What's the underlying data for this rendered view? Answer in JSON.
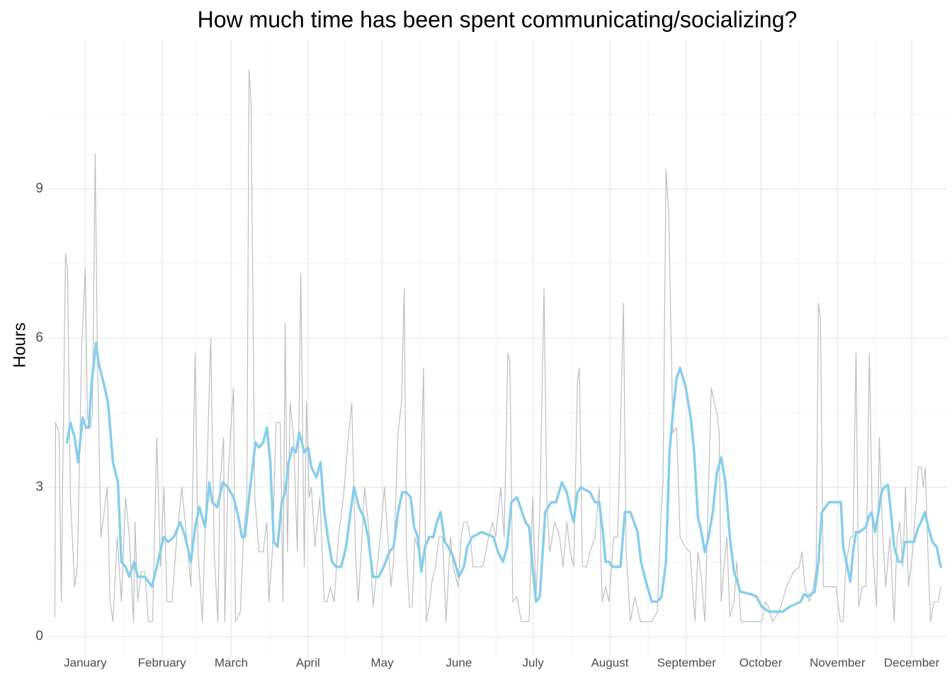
{
  "chart_data": {
    "type": "line",
    "title": "How much time has been spent communicating/socializing?",
    "y_label": "Hours",
    "xlim": [
      -15,
      348
    ],
    "ylim": [
      -0.4,
      12
    ],
    "xticks": [
      {
        "value": 0,
        "label": "January"
      },
      {
        "value": 31,
        "label": "February"
      },
      {
        "value": 59,
        "label": "March"
      },
      {
        "value": 90,
        "label": "April"
      },
      {
        "value": 120,
        "label": "May"
      },
      {
        "value": 151,
        "label": "June"
      },
      {
        "value": 181,
        "label": "July"
      },
      {
        "value": 212,
        "label": "August"
      },
      {
        "value": 243,
        "label": "September"
      },
      {
        "value": 273,
        "label": "October"
      },
      {
        "value": 304,
        "label": "November"
      },
      {
        "value": 334,
        "label": "December"
      }
    ],
    "yticks": [
      0,
      3,
      6,
      9
    ],
    "minor_xticks": [
      15.5,
      45,
      74.5,
      105,
      135.5,
      166,
      196.5,
      227.5,
      258,
      288.5,
      319
    ],
    "minor_yticks": [
      1.5,
      4.5,
      7.5,
      10.5
    ],
    "grid": true,
    "series": [
      {
        "color": "#bebebe",
        "line_width": 1.2,
        "x": [
          -12.3,
          -12,
          -10.6,
          -9.7,
          -9.2,
          -8,
          -7.2,
          -6,
          -4.3,
          -3.2,
          -1.4,
          0,
          0.9,
          2,
          2.9,
          4,
          4.9,
          6.3,
          8.9,
          10,
          11.2,
          12.9,
          14.6,
          16.3,
          17.8,
          19.5,
          20.1,
          21.2,
          22.6,
          24.1,
          25.5,
          27.2,
          28.9,
          30.4,
          31.8,
          33,
          35,
          37,
          39,
          41,
          42.7,
          44.4,
          45.6,
          47.3,
          49,
          50.7,
          52.1,
          53.6,
          54.4,
          55.9,
          56.4,
          57.6,
          58.7,
          59.9,
          60.7,
          62.7,
          63.9,
          65.3,
          66.2,
          67,
          68.5,
          70.2,
          71.9,
          73.4,
          74.2,
          75.6,
          77.1,
          78.8,
          79.9,
          80.8,
          81.7,
          82.8,
          84.2,
          85.7,
          87.1,
          88.5,
          89.4,
          90.5,
          91.4,
          92.8,
          94.8,
          96.6,
          97.7,
          99.1,
          100.6,
          102.3,
          104.3,
          106.3,
          107.7,
          109.2,
          110.3,
          111.5,
          112.9,
          114.9,
          116.3,
          117.8,
          119.2,
          120.9,
          122.3,
          123.5,
          124.6,
          126.4,
          127.8,
          128.9,
          129.8,
          131,
          132.1,
          133.2,
          134.9,
          136.7,
          137.8,
          139,
          140.1,
          141.5,
          143,
          144.4,
          145.8,
          147.6,
          148.7,
          150.7,
          151.9,
          153,
          154.4,
          155.6,
          156.7,
          158.7,
          160.7,
          163,
          164.7,
          165.9,
          167.9,
          169.3,
          170.8,
          171.6,
          172.8,
          174.5,
          176.2,
          177.9,
          179.4,
          180.8,
          182.2,
          183.7,
          185.4,
          186.5,
          187.7,
          189.7,
          191.7,
          193.1,
          194.6,
          196,
          197.4,
          198.9,
          199.7,
          200.9,
          202.6,
          204,
          206,
          207.7,
          208.9,
          210.3,
          211.7,
          213.5,
          215.2,
          216.3,
          217.5,
          218.6,
          220.3,
          222.1,
          224.4,
          226.6,
          228.9,
          231.2,
          232.7,
          233.5,
          234.7,
          235.8,
          237.5,
          239,
          240.4,
          242.4,
          244.4,
          246.4,
          247.6,
          249,
          250.4,
          251.9,
          253,
          254.2,
          255.3,
          256.2,
          257,
          258.2,
          259.3,
          260.5,
          262.2,
          263.3,
          265,
          267.6,
          270.2,
          273.4,
          274.8,
          276.2,
          277.7,
          280.5,
          283.4,
          286.2,
          288.5,
          289.7,
          290.8,
          292.6,
          294.3,
          295.4,
          296.3,
          297.1,
          298.3,
          300,
          301.7,
          303.4,
          305.2,
          306.3,
          307.4,
          309.2,
          310.3,
          311.5,
          312.6,
          314,
          315.5,
          316.9,
          318.3,
          319.8,
          320.9,
          322.3,
          323.5,
          325.2,
          326.9,
          328.1,
          329.2,
          330.4,
          331.5,
          332.7,
          334.4,
          336.7,
          337.8,
          338.7,
          339.5,
          340.7,
          341.6,
          343,
          344.7,
          345.8
        ],
        "values": [
          0.4,
          4.3,
          4.1,
          0.7,
          2.8,
          7.7,
          7.4,
          2.8,
          1,
          1.4,
          5.9,
          7.4,
          4.4,
          4.2,
          4.5,
          9.7,
          5.7,
          2,
          3,
          0.7,
          0.3,
          2,
          0.7,
          2.8,
          2,
          0.3,
          2.3,
          0.7,
          1.3,
          1.3,
          0.3,
          0.3,
          4,
          1.4,
          3,
          0.7,
          0.7,
          2,
          3,
          2,
          1,
          5.7,
          1.7,
          0.3,
          3,
          6,
          1.7,
          0.3,
          3,
          4,
          0.3,
          3,
          4.1,
          5,
          0.3,
          0.5,
          2,
          2.8,
          11.4,
          10.7,
          2.8,
          1.7,
          1.7,
          2.3,
          0.7,
          1.7,
          4.3,
          4.3,
          0.7,
          6.3,
          1.7,
          4.7,
          4,
          1.7,
          7.3,
          1.4,
          4.7,
          2.8,
          3,
          1.8,
          2.8,
          0.7,
          0.7,
          1,
          0.7,
          2,
          2.8,
          4,
          4.7,
          1.7,
          0.7,
          1.7,
          3,
          2,
          0.6,
          1.3,
          2,
          3,
          2,
          1,
          1.5,
          4.1,
          4.7,
          7,
          1.7,
          0.6,
          0.6,
          2,
          1.7,
          5.4,
          0.3,
          0.6,
          1.1,
          1.4,
          2,
          2,
          0.3,
          2,
          1.4,
          1,
          2,
          2.3,
          2.3,
          2,
          1.4,
          1.4,
          1.4,
          2,
          2.3,
          2,
          3,
          2,
          5.7,
          5.5,
          0.7,
          0.8,
          0.3,
          0.3,
          0.3,
          2.8,
          0.8,
          2.5,
          7,
          2.8,
          1.7,
          2.3,
          2,
          1.4,
          2.3,
          1.7,
          1.4,
          5.1,
          5.4,
          1.4,
          1.4,
          1.7,
          2,
          3,
          0.7,
          1,
          0.7,
          2,
          2,
          4.2,
          6.7,
          1.7,
          0.3,
          0.8,
          0.3,
          0.3,
          0.3,
          0.5,
          2.5,
          3.1,
          9.4,
          8.5,
          4.1,
          4.2,
          2,
          1.8,
          1.7,
          0.3,
          1.7,
          1.2,
          0.3,
          3,
          5,
          4.7,
          4.5,
          4.1,
          0.7,
          1.4,
          2,
          0.4,
          0.7,
          1.5,
          0.3,
          0.3,
          0.3,
          0.3,
          0.7,
          0.6,
          0.3,
          0.5,
          1,
          1.3,
          1.4,
          1.7,
          1,
          0.7,
          1,
          1.4,
          6.7,
          6.4,
          1,
          1,
          1,
          1,
          0.3,
          0.3,
          1.4,
          2,
          2,
          5.7,
          0.6,
          1,
          1,
          5.7,
          1.7,
          0.6,
          4,
          2,
          1,
          2,
          0.3,
          2,
          2.3,
          1.4,
          3,
          1,
          1.7,
          3.4,
          3.4,
          3,
          3.4,
          1.5,
          0.3,
          0.7,
          0.7,
          1
        ]
      },
      {
        "color": "#87ceeb",
        "line_width": 3.5,
        "x": [
          -7.4,
          -6,
          -4.3,
          -2.9,
          -1.1,
          0.3,
          1.4,
          2.6,
          4.3,
          5.4,
          7.4,
          9.2,
          11.2,
          13.2,
          14.6,
          16.3,
          17.8,
          19.8,
          21.2,
          24.1,
          26.9,
          28.9,
          30.7,
          31.8,
          33.5,
          35.8,
          38.4,
          40.4,
          42.7,
          44.4,
          46.1,
          48.4,
          50.1,
          51.3,
          53.3,
          55.6,
          57.6,
          59.9,
          61.9,
          63.3,
          64.5,
          66.2,
          67.6,
          68.8,
          70.2,
          71.9,
          73.4,
          74.8,
          76.2,
          77.7,
          79.4,
          80.8,
          82.2,
          83.7,
          85.1,
          86.5,
          88.5,
          90,
          91.4,
          93.4,
          95.1,
          96.6,
          98,
          99.7,
          101.4,
          103.4,
          105.4,
          107.2,
          108.6,
          110.6,
          112.6,
          114.3,
          116.3,
          118.6,
          120.6,
          122.9,
          124.6,
          126.4,
          128.1,
          129.8,
          131.5,
          132.9,
          134.4,
          135.8,
          137.3,
          139,
          140.7,
          142.1,
          143.6,
          145.3,
          146.7,
          148.7,
          151,
          153,
          154.4,
          156.4,
          160.2,
          165,
          166.8,
          168.8,
          170.5,
          172.2,
          174.5,
          176.5,
          177.9,
          179.4,
          180.8,
          182.2,
          183.7,
          185.9,
          188.3,
          190.3,
          192.6,
          194.6,
          196.3,
          197.4,
          198.9,
          200.3,
          202,
          204,
          206,
          207.7,
          209.2,
          210.3,
          211.7,
          213.2,
          214.6,
          216.3,
          218.1,
          220.3,
          221.8,
          223.2,
          224.6,
          226.6,
          228.9,
          231.2,
          232.9,
          234.7,
          236.1,
          237.5,
          239,
          240.4,
          242.7,
          244.7,
          246.1,
          247.6,
          249,
          250.4,
          251.9,
          253.6,
          255.3,
          257,
          258.7,
          260.5,
          262.2,
          264.8,
          269.1,
          271.3,
          273.4,
          276.2,
          281.9,
          284.8,
          289.1,
          290.5,
          292,
          293.4,
          294.8,
          296.3,
          297.7,
          300.6,
          303.4,
          305.4,
          306.3,
          308,
          309.2,
          310.3,
          311.5,
          312.9,
          315.5,
          316.6,
          317.8,
          319.2,
          320.6,
          321.8,
          322.9,
          324.4,
          325.8,
          326.9,
          328.7,
          330.1,
          331.2,
          332.9,
          334.9,
          336.7,
          337.8,
          339.3,
          340.7,
          342.4,
          344.1,
          345.3,
          345.8
        ],
        "values": [
          3.9,
          4.3,
          4,
          3.5,
          4.4,
          4.2,
          4.2,
          5.1,
          5.9,
          5.5,
          5.1,
          4.7,
          3.5,
          3.1,
          1.5,
          1.4,
          1.2,
          1.5,
          1.2,
          1.2,
          1,
          1.4,
          1.8,
          2,
          1.9,
          2,
          2.3,
          2,
          1.5,
          2.2,
          2.6,
          2.2,
          3.1,
          2.7,
          2.6,
          3.1,
          3,
          2.8,
          2.4,
          2,
          2,
          2.8,
          3.4,
          3.9,
          3.8,
          3.9,
          4.2,
          3.5,
          1.9,
          1.8,
          2.7,
          2.9,
          3.5,
          3.8,
          3.7,
          4.1,
          3.7,
          3.8,
          3.4,
          3.2,
          3.5,
          2.5,
          2,
          1.5,
          1.4,
          1.4,
          1.8,
          2.5,
          3,
          2.6,
          2.4,
          2,
          1.2,
          1.2,
          1.4,
          1.7,
          1.8,
          2.5,
          2.9,
          2.9,
          2.8,
          2.2,
          2,
          1.3,
          1.8,
          2,
          2,
          2.3,
          2.5,
          1.9,
          1.8,
          1.6,
          1.2,
          1.4,
          1.8,
          2,
          2.1,
          2,
          1.7,
          1.5,
          1.8,
          2.7,
          2.8,
          2.5,
          2.3,
          2.2,
          1.4,
          0.7,
          0.8,
          2.5,
          2.7,
          2.7,
          3.1,
          2.9,
          2.5,
          2.3,
          2.9,
          3,
          2.95,
          2.9,
          2.7,
          2.7,
          2.1,
          1.5,
          1.5,
          1.4,
          1.4,
          1.4,
          2.5,
          2.5,
          2.3,
          2.1,
          1.5,
          1.1,
          0.7,
          0.7,
          0.8,
          1.5,
          3.7,
          4.5,
          5.2,
          5.4,
          5,
          4.4,
          3.7,
          2.4,
          2.1,
          1.7,
          2,
          2.5,
          3.3,
          3.6,
          3.1,
          2,
          1.3,
          0.9,
          0.85,
          0.8,
          0.6,
          0.5,
          0.5,
          0.6,
          0.7,
          0.85,
          0.8,
          0.85,
          0.9,
          1.5,
          2.5,
          2.7,
          2.7,
          2.7,
          1.8,
          1.4,
          1.1,
          1.7,
          2.1,
          2.1,
          2.2,
          2.4,
          2.5,
          2.1,
          2.5,
          2.9,
          3,
          3.05,
          2.4,
          1.8,
          1.5,
          1.5,
          1.9,
          1.9,
          1.9,
          2.2,
          2.3,
          2.5,
          2.2,
          1.9,
          1.8,
          1.5,
          1.4
        ]
      }
    ]
  }
}
